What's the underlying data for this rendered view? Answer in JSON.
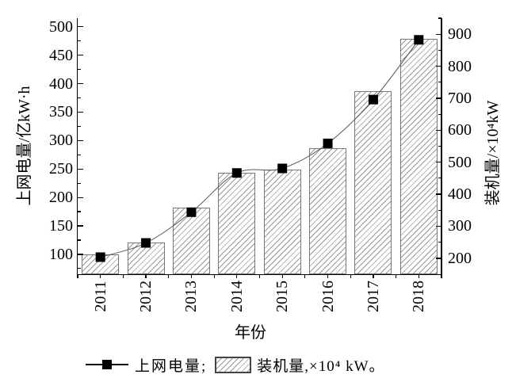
{
  "chart_data": {
    "type": "combo",
    "categories": [
      "2011",
      "2012",
      "2013",
      "2014",
      "2015",
      "2016",
      "2017",
      "2018"
    ],
    "series": [
      {
        "name": "上网电量",
        "type": "line",
        "axis": "left",
        "marker": "filled-square",
        "color": "#000000",
        "values": [
          95,
          120,
          174,
          243,
          251,
          295,
          372,
          477
        ]
      },
      {
        "name": "装机量",
        "type": "bar",
        "axis": "right",
        "pattern": "diagonal-hatch",
        "values": [
          212,
          250,
          358,
          468,
          478,
          544,
          722,
          886
        ]
      }
    ],
    "left_axis": {
      "label": "上网电量/亿kW·h",
      "min": 65,
      "max": 515,
      "ticks": [
        100,
        150,
        200,
        250,
        300,
        350,
        400,
        450,
        500
      ],
      "minor_step": 25
    },
    "right_axis": {
      "label": "装机量/×10⁴kW",
      "min": 150,
      "max": 950,
      "ticks": [
        200,
        300,
        400,
        500,
        600,
        700,
        800,
        900
      ],
      "minor_step": 50
    },
    "x_axis": {
      "label": "年份"
    },
    "grid": false,
    "legend_position": "bottom",
    "legend": [
      {
        "symbol": "line-with-square-marker",
        "label": "上网电量;"
      },
      {
        "symbol": "hatched-swatch",
        "label": "装机量,×10⁴ kW。"
      }
    ]
  },
  "colors": {
    "background": "#ffffff",
    "axis": "#000000",
    "text": "#000000",
    "line": "#555555",
    "marker": "#000000",
    "bar_border": "#777777",
    "bar_hatch": "#999999"
  }
}
